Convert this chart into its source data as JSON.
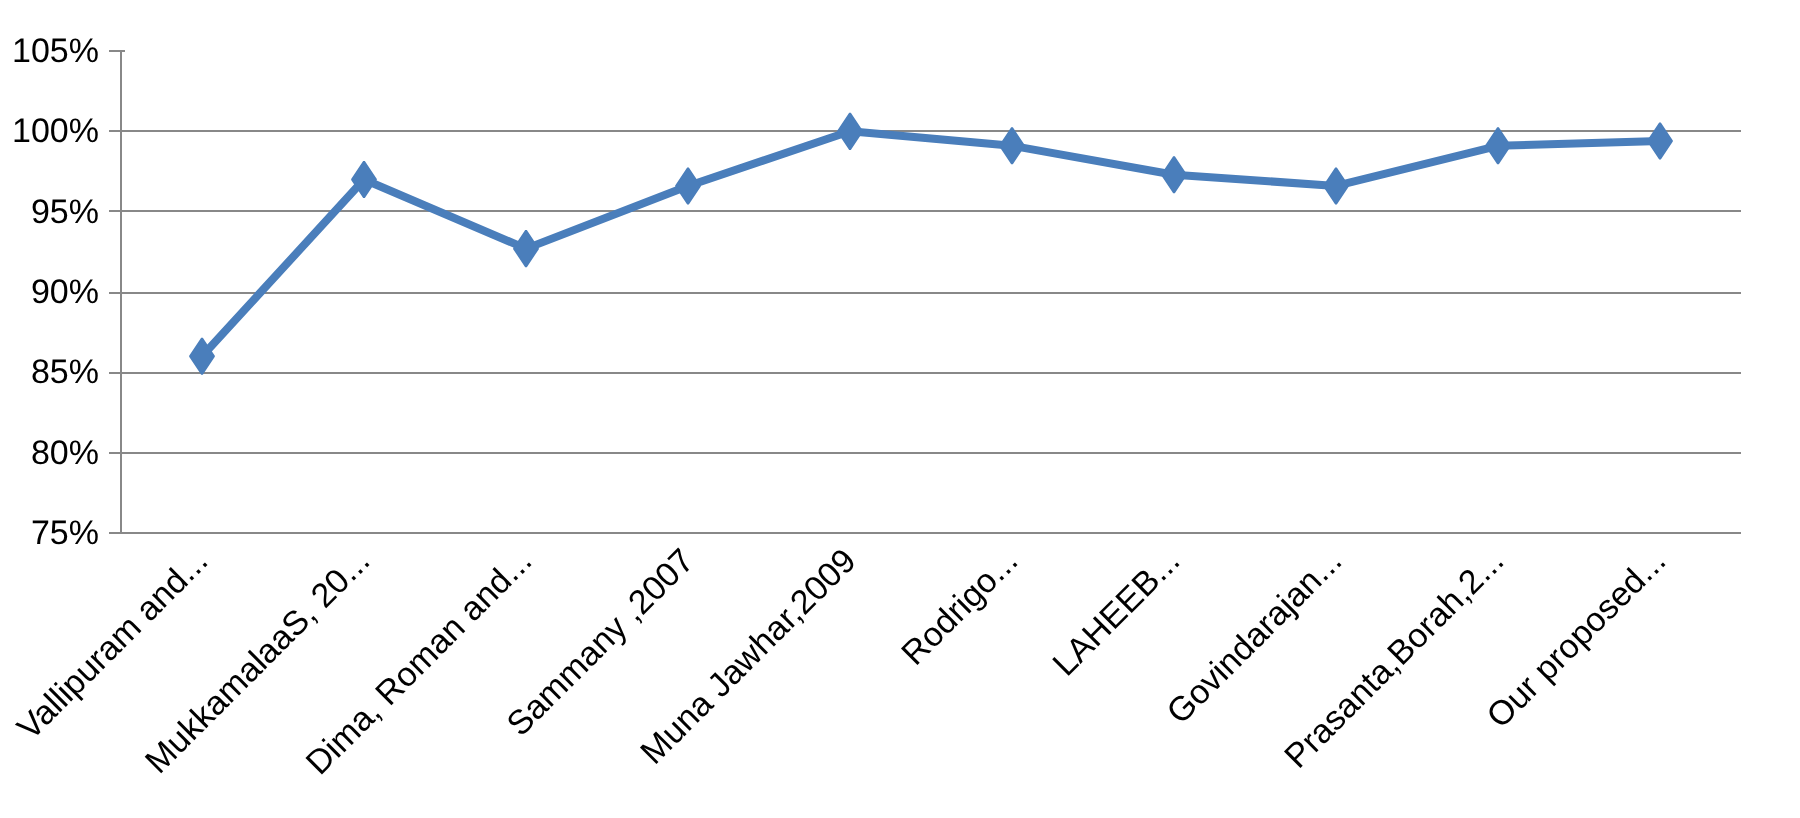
{
  "chart_data": {
    "type": "line",
    "categories": [
      "Vallipuram and...",
      "MukkamalaaS, 20...",
      "Dima, Roman and...",
      "Sammany ,2007",
      "Muna Jawhar,2009",
      "Rodrigo...",
      "LAHEEB...",
      "Govindarajan...",
      "Prasanta,Borah,2...",
      "Our proposed..."
    ],
    "series": [
      {
        "color": "#4a7ebb",
        "values": [
          86,
          97,
          92.7,
          96.6,
          100,
          99.1,
          97.3,
          96.6,
          99.1,
          99.4
        ]
      }
    ],
    "ylim": [
      75,
      105
    ],
    "yticks": [
      {
        "value": 75,
        "label": "75%"
      },
      {
        "value": 80,
        "label": "80%"
      },
      {
        "value": 85,
        "label": "85%"
      },
      {
        "value": 90,
        "label": "90%"
      },
      {
        "value": 95,
        "label": "95%"
      },
      {
        "value": 100,
        "label": "100%"
      },
      {
        "value": 105,
        "label": "105%"
      }
    ],
    "grid": "y",
    "marker": "diamond"
  }
}
